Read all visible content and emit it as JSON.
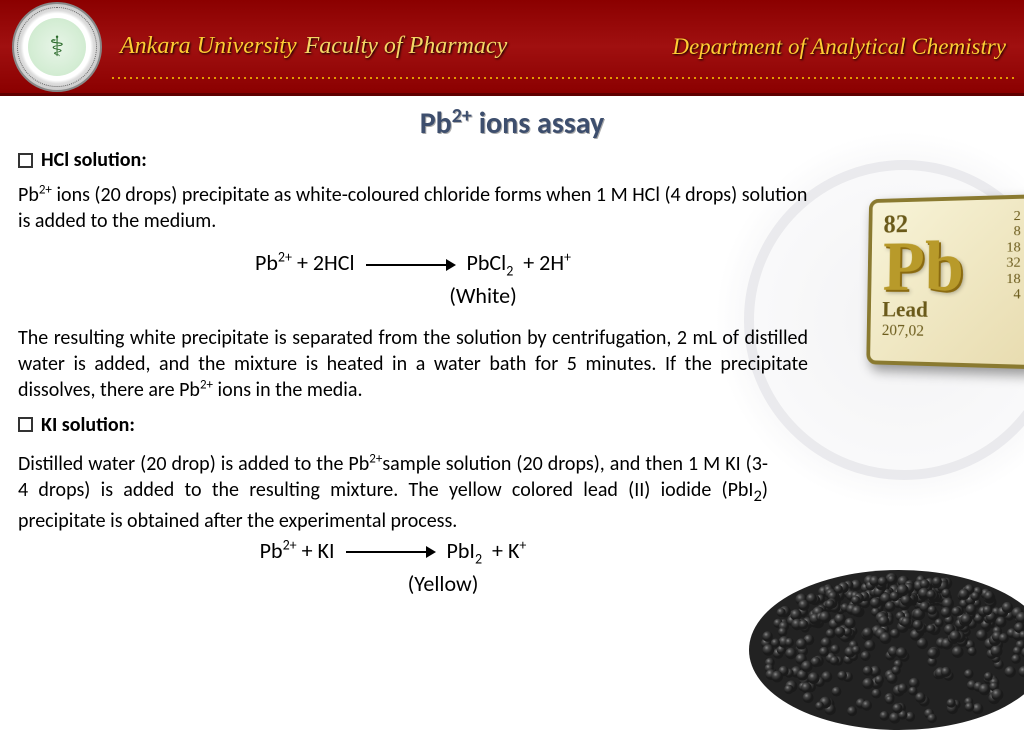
{
  "header": {
    "university": "Ankara University",
    "faculty": "Faculty of Pharmacy",
    "department": "Department of Analytical Chemistry"
  },
  "title_html": "Pb<sup>2+</sup> ions assay",
  "section1": {
    "heading": "HCl solution:",
    "para1_html": "Pb<sup>2+</sup> ions (20 drops) precipitate as white-coloured chloride forms when 1 M HCl (4 drops) solution is added to the medium.",
    "eq_left_html": "Pb<sup>2+</sup> + 2HCl",
    "eq_right_html": "PbCl<sub>2</sub> &nbsp;+ 2H<sup>+</sup>",
    "eq_note": "(White)",
    "para2_html": "The resulting white precipitate is separated from the solution by centrifugation, 2 mL of distilled water is added, and the mixture is heated in a water bath for 5 minutes. If the precipitate dissolves, there are Pb<sup>2+</sup> ions in the media."
  },
  "section2": {
    "heading": "KI solution:",
    "para_html": "Distilled water (20 drop) is added to the Pb<sup>2+</sup>sample solution (20 drops), and then 1 M KI (3-4 drops) is added to the resulting mixture. The yellow colored lead (II) iodide (PbI<sub>2</sub>) precipitate is obtained after the experimental process.",
    "eq_left_html": "Pb<sup>2+</sup> + KI",
    "eq_right_html": "PbI<sub>2</sub> &nbsp;+ K<sup>+</sup>",
    "eq_note": "(Yellow)"
  },
  "element_tile": {
    "atomic_number": "82",
    "symbol": "Pb",
    "name": "Lead",
    "mass": "207,02",
    "shells": [
      "2",
      "8",
      "18",
      "32",
      "18",
      "4"
    ]
  },
  "colors": {
    "header_bg": "#8b0000",
    "accent": "#ffcc33",
    "title": "#3d4e6d"
  }
}
